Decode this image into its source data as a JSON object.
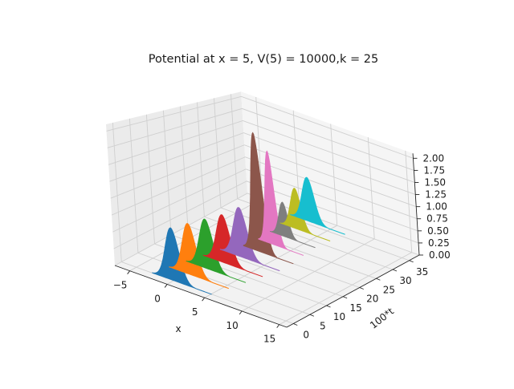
{
  "chart_data": {
    "type": "3d-area",
    "title": "Potential at x = 5, V(5) = 10000,k = 25",
    "xlabel": "x",
    "ylabel": "100*t",
    "zlabel": "",
    "xlim": [
      -7,
      16
    ],
    "ylim": [
      -2,
      38
    ],
    "zlim": [
      0,
      2.1
    ],
    "xticks": [
      -5,
      0,
      5,
      10,
      15
    ],
    "yticks": [
      0,
      5,
      10,
      15,
      20,
      25,
      30,
      35
    ],
    "zticks": [
      0.0,
      0.25,
      0.5,
      0.75,
      1.0,
      1.25,
      1.5,
      1.75,
      2.0
    ],
    "xtick_labels": [
      "−5",
      "0",
      "5",
      "10",
      "15"
    ],
    "ytick_labels": [
      "0",
      "5",
      "10",
      "15",
      "20",
      "25",
      "30",
      "35"
    ],
    "ztick_labels": [
      "0.00",
      "0.25",
      "0.50",
      "0.75",
      "1.00",
      "1.25",
      "1.50",
      "1.75",
      "2.00"
    ],
    "grid": true,
    "series": [
      {
        "t": 0,
        "center": 0.0,
        "width": 0.9,
        "peak": 0.8,
        "color": "#1f77b4"
      },
      {
        "t": 4,
        "center": 0.5,
        "width": 0.9,
        "peak": 0.8,
        "color": "#ff7f0e"
      },
      {
        "t": 8,
        "center": 1.0,
        "width": 0.9,
        "peak": 0.8,
        "color": "#2ca02c"
      },
      {
        "t": 12,
        "center": 1.5,
        "width": 0.9,
        "peak": 0.8,
        "color": "#d62728"
      },
      {
        "t": 16,
        "center": 2.0,
        "width": 0.9,
        "peak": 0.85,
        "color": "#9467bd"
      },
      {
        "t": 20,
        "center": 2.7,
        "width": 0.7,
        "peak": 2.1,
        "color": "#8c564b"
      },
      {
        "t": 24,
        "center": 2.6,
        "width": 0.6,
        "peak": 1.7,
        "color": "#e377c2"
      },
      {
        "t": 28,
        "center": 2.4,
        "width": 0.6,
        "peak": 0.65,
        "color": "#7f7f7f"
      },
      {
        "t": 32,
        "center": 2.3,
        "width": 0.7,
        "peak": 0.8,
        "color": "#bcbd22"
      },
      {
        "t": 36,
        "center": 2.2,
        "width": 0.8,
        "peak": 0.9,
        "color": "#17becf"
      }
    ]
  }
}
